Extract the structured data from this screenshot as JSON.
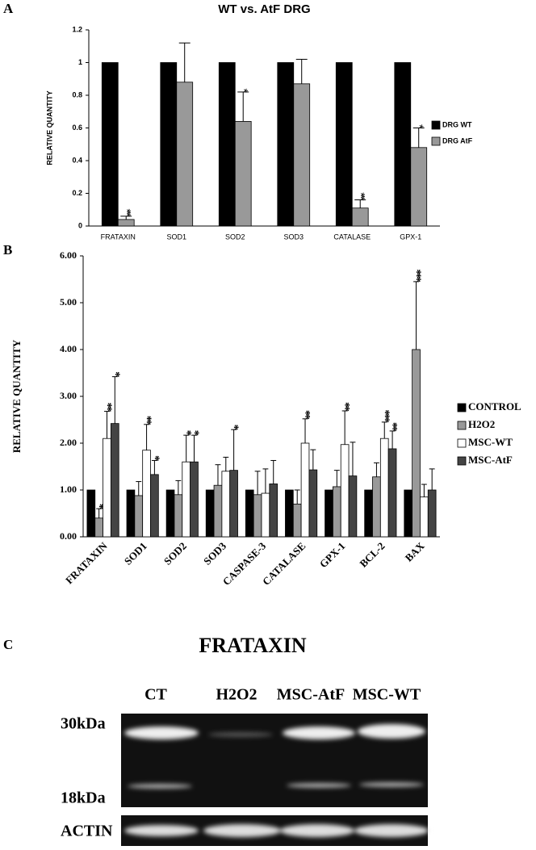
{
  "panels": [
    "A",
    "B",
    "C"
  ],
  "chart_data": [
    {
      "type": "bar",
      "title": "WT vs. AtF DRG",
      "ylabel": "RELATIVE QUANTITY",
      "categories": [
        "FRATAXIN",
        "SOD1",
        "SOD2",
        "SOD3",
        "CATALASE",
        "GPX-1"
      ],
      "series": [
        {
          "name": "DRG WT",
          "color": "#000000",
          "values": [
            1,
            1,
            1,
            1,
            1,
            1
          ]
        },
        {
          "name": "DRG AtF",
          "color": "#999999",
          "values": [
            0.04,
            0.88,
            0.64,
            0.87,
            0.11,
            0.48
          ],
          "errors": [
            0.02,
            0.24,
            0.18,
            0.15,
            0.05,
            0.12
          ],
          "annotations": [
            "***",
            null,
            "*",
            null,
            "***",
            "*"
          ]
        }
      ],
      "ylim": [
        0,
        1.2
      ],
      "yticks": [
        0,
        0.2,
        0.4,
        0.6,
        0.8,
        1,
        1.2
      ],
      "grid": false,
      "legend": "right"
    },
    {
      "type": "bar",
      "ylabel": "RELATIVE QUANTITY",
      "categories": [
        "FRATAXIN",
        "SOD1",
        "SOD2",
        "SOD3",
        "CASPASE-3",
        "CATALASE",
        "GPX-1",
        "BCL-2",
        "BAX"
      ],
      "series": [
        {
          "name": "CONTROL",
          "color": "#000000",
          "values": [
            1,
            1,
            1,
            1,
            1,
            1,
            1,
            1,
            1
          ]
        },
        {
          "name": "H2O2",
          "color": "#999999",
          "values": [
            0.4,
            0.88,
            0.9,
            1.1,
            0.9,
            0.7,
            1.07,
            1.28,
            4.0
          ],
          "errors": [
            0.2,
            0.3,
            0.3,
            0.44,
            0.5,
            0.3,
            0.35,
            0.3,
            1.45
          ],
          "annotations": [
            "*",
            null,
            null,
            null,
            null,
            null,
            null,
            null,
            "***"
          ]
        },
        {
          "name": "MSC-WT",
          "color": "#ffffff",
          "values": [
            2.1,
            1.85,
            1.6,
            1.4,
            0.93,
            2.0,
            1.97,
            2.1,
            0.85
          ],
          "errors": [
            0.58,
            0.55,
            0.57,
            0.3,
            0.52,
            0.52,
            0.72,
            0.35,
            0.27
          ],
          "annotations": [
            "**",
            "**",
            "*",
            null,
            null,
            "**",
            "**",
            "***",
            null
          ]
        },
        {
          "name": "MSC-AtF",
          "color": "#444444",
          "values": [
            2.42,
            1.33,
            1.6,
            1.42,
            1.13,
            1.43,
            1.3,
            1.88,
            1.0
          ],
          "errors": [
            1.0,
            0.3,
            0.57,
            0.87,
            0.5,
            0.43,
            0.72,
            0.38,
            0.45
          ],
          "annotations": [
            "*",
            "*",
            "*",
            "*",
            null,
            null,
            null,
            "**",
            null
          ]
        }
      ],
      "ylim": [
        0,
        6
      ],
      "yticks": [
        {
          "value": 0,
          "label": "0.00"
        },
        {
          "value": 1,
          "label": "1.00"
        },
        {
          "value": 2,
          "label": "2.00"
        },
        {
          "value": 3,
          "label": "3.00"
        },
        {
          "value": 4,
          "label": "4.00"
        },
        {
          "value": 5,
          "label": "5.00"
        },
        {
          "value": 6,
          "label": "6.00"
        }
      ],
      "grid": false,
      "legend": "right"
    }
  ],
  "blot": {
    "title": "FRATAXIN",
    "lanes": [
      "CT",
      "H2O2",
      "MSC-AtF",
      "MSC-WT"
    ],
    "markers": [
      "30kDa",
      "18kDa"
    ],
    "loading_control": "ACTIN"
  }
}
